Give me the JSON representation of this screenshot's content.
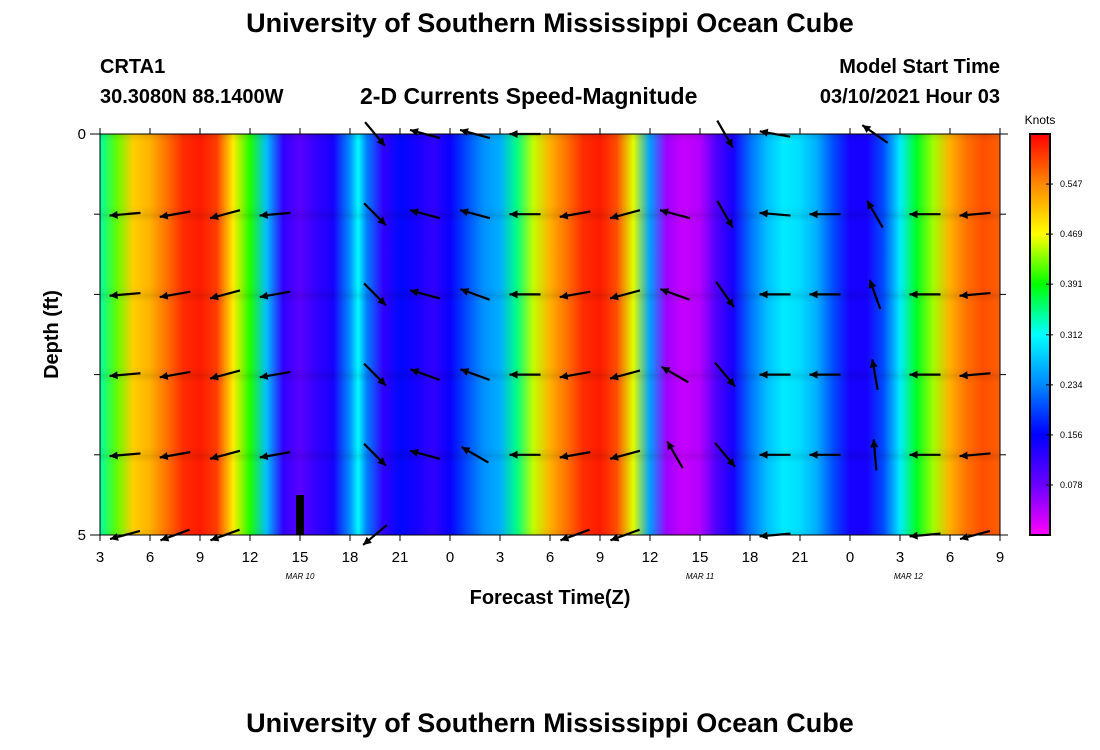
{
  "header": {
    "title": "University of Southern Mississippi Ocean Cube",
    "station_id": "CRTA1",
    "station_coords": "30.3080N 88.1400W",
    "chart_title": "2-D Currents Speed-Magnitude",
    "model_start_label": "Model Start Time",
    "model_start_value": "03/10/2021 Hour 03"
  },
  "footer": {
    "title": "University of Southern Mississippi Ocean Cube"
  },
  "chart_data": {
    "type": "heatmap",
    "title": "2-D Currents Speed-Magnitude",
    "xlabel": "Forecast Time(Z)",
    "ylabel": "Depth (ft)",
    "x_start_hour": 3,
    "x_end_hour": 57,
    "x_ticks": [
      "3",
      "6",
      "9",
      "12",
      "15",
      "18",
      "21",
      "0",
      "3",
      "6",
      "9",
      "12",
      "15",
      "18",
      "21",
      "0",
      "3",
      "6",
      "9"
    ],
    "date_labels": [
      {
        "label": "MAR 10",
        "hour": 15
      },
      {
        "label": "MAR 11",
        "hour": 39
      },
      {
        "label": "MAR 12",
        "hour": 51.5
      }
    ],
    "ylim": [
      0,
      5
    ],
    "y_tick_labels": [
      "0",
      "5"
    ],
    "y_minor_ticks": [
      1,
      2,
      3,
      4
    ],
    "colorbar": {
      "unit": "Knots",
      "min": 0.0,
      "max": 0.625,
      "ticks": [
        0.078,
        0.156,
        0.234,
        0.312,
        0.391,
        0.469,
        0.547
      ]
    },
    "speed_knots_by_hour": [
      [
        3,
        0.34
      ],
      [
        4,
        0.42
      ],
      [
        5,
        0.5
      ],
      [
        6,
        0.52
      ],
      [
        7,
        0.56
      ],
      [
        8,
        0.6
      ],
      [
        9,
        0.61
      ],
      [
        10,
        0.59
      ],
      [
        11,
        0.48
      ],
      [
        12,
        0.4
      ],
      [
        13,
        0.27
      ],
      [
        14,
        0.12
      ],
      [
        15,
        0.09
      ],
      [
        16,
        0.12
      ],
      [
        17,
        0.14
      ],
      [
        18,
        0.24
      ],
      [
        18.5,
        0.31
      ],
      [
        19,
        0.23
      ],
      [
        20,
        0.12
      ],
      [
        21,
        0.16
      ],
      [
        22,
        0.14
      ],
      [
        23,
        0.12
      ],
      [
        24,
        0.15
      ],
      [
        25,
        0.2
      ],
      [
        26,
        0.24
      ],
      [
        27,
        0.26
      ],
      [
        28,
        0.35
      ],
      [
        29,
        0.45
      ],
      [
        30,
        0.52
      ],
      [
        31,
        0.56
      ],
      [
        32,
        0.6
      ],
      [
        33,
        0.61
      ],
      [
        34,
        0.58
      ],
      [
        35,
        0.46
      ],
      [
        36,
        0.25
      ],
      [
        37,
        0.05
      ],
      [
        38,
        0.03
      ],
      [
        39,
        0.04
      ],
      [
        40,
        0.1
      ],
      [
        41,
        0.14
      ],
      [
        42,
        0.22
      ],
      [
        43,
        0.27
      ],
      [
        44,
        0.3
      ],
      [
        45,
        0.29
      ],
      [
        46,
        0.26
      ],
      [
        47,
        0.2
      ],
      [
        48,
        0.14
      ],
      [
        49,
        0.14
      ],
      [
        50,
        0.2
      ],
      [
        51,
        0.3
      ],
      [
        52,
        0.38
      ],
      [
        53,
        0.44
      ],
      [
        54,
        0.52
      ],
      [
        55,
        0.56
      ],
      [
        56,
        0.58
      ],
      [
        57,
        0.57
      ]
    ],
    "bottom_marker_hour": 15,
    "arrow_rows_ft": [
      0,
      1,
      2,
      3,
      4,
      5
    ],
    "arrow_directions_deg": [
      {
        "hour": 4.5,
        "dirs": [
          null,
          185,
          185,
          185,
          185,
          195
        ]
      },
      {
        "hour": 7.5,
        "dirs": [
          null,
          190,
          190,
          190,
          190,
          200
        ]
      },
      {
        "hour": 10.5,
        "dirs": [
          null,
          195,
          195,
          195,
          195,
          200
        ]
      },
      {
        "hour": 13.5,
        "dirs": [
          null,
          185,
          190,
          190,
          190,
          null
        ]
      },
      {
        "hour": 19.5,
        "dirs": [
          310,
          315,
          315,
          315,
          315,
          220
        ]
      },
      {
        "hour": 22.5,
        "dirs": [
          165,
          165,
          165,
          160,
          165,
          null
        ]
      },
      {
        "hour": 25.5,
        "dirs": [
          165,
          165,
          160,
          160,
          150,
          null
        ]
      },
      {
        "hour": 28.5,
        "dirs": [
          180,
          180,
          180,
          180,
          180,
          null
        ]
      },
      {
        "hour": 31.5,
        "dirs": [
          null,
          190,
          190,
          190,
          190,
          200
        ]
      },
      {
        "hour": 34.5,
        "dirs": [
          null,
          195,
          195,
          195,
          195,
          200
        ]
      },
      {
        "hour": 37.5,
        "dirs": [
          null,
          165,
          160,
          150,
          120,
          null
        ]
      },
      {
        "hour": 40.5,
        "dirs": [
          300,
          300,
          305,
          310,
          310,
          null
        ]
      },
      {
        "hour": 43.5,
        "dirs": [
          170,
          175,
          180,
          180,
          180,
          185
        ]
      },
      {
        "hour": 46.5,
        "dirs": [
          null,
          180,
          180,
          180,
          180,
          null
        ]
      },
      {
        "hour": 49.5,
        "dirs": [
          145,
          120,
          110,
          100,
          95,
          null
        ]
      },
      {
        "hour": 52.5,
        "dirs": [
          null,
          180,
          180,
          180,
          180,
          185
        ]
      },
      {
        "hour": 55.5,
        "dirs": [
          null,
          185,
          185,
          185,
          185,
          195
        ]
      }
    ]
  },
  "colors": {
    "background": "#ffffff",
    "axis": "#000000",
    "arrow": "#000000",
    "colormap": [
      "#ff00ff",
      "#6a00ff",
      "#0000ff",
      "#0088ff",
      "#00ffff",
      "#00ff00",
      "#ffff00",
      "#ff8800",
      "#ff0000"
    ]
  }
}
